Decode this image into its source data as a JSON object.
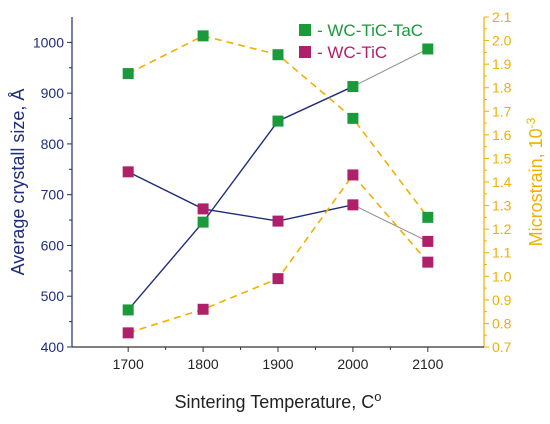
{
  "chart_data": {
    "type": "line",
    "x": [
      1700,
      1800,
      1900,
      2000,
      2100
    ],
    "xlabel": "Sintering Temperature, C",
    "xlabel_degree": "o",
    "xlim": [
      1625,
      2175
    ],
    "x_ticks": [
      1700,
      1800,
      1900,
      2000,
      2100
    ],
    "ylabel_left": "Average crystall size, Å",
    "ylim_left": [
      400,
      1050
    ],
    "y_ticks_left": [
      400,
      500,
      600,
      700,
      800,
      900,
      1000
    ],
    "ylabel_right": "Microstrain, 10",
    "ylabel_right_exponent": "-3",
    "ylim_right": [
      0.7,
      2.1
    ],
    "y_ticks_right": [
      "0.7",
      "0.8",
      "0.9",
      "1.0",
      "1.1",
      "1.2",
      "1.3",
      "1.4",
      "1.5",
      "1.6",
      "1.7",
      "1.8",
      "1.9",
      "2.0",
      "2.1"
    ],
    "legend_position": "top-right",
    "colors": {
      "left_axis": "#1f2d7a",
      "right_axis": "#f0b000",
      "wc_tic_tac": "#1a9a3a",
      "wc_tic": "#b0206a",
      "grey_segment": "#8c8c8c"
    },
    "series": [
      {
        "name": "- WC-TiC-TaC",
        "marker_color": "#1a9a3a",
        "crystal_size": [
          473,
          646,
          845,
          913,
          987
        ],
        "microstrain": [
          1.86,
          2.02,
          1.94,
          1.67,
          1.25
        ]
      },
      {
        "name": "- WC-TiC",
        "marker_color": "#b0206a",
        "crystal_size": [
          745,
          672,
          648,
          680,
          608
        ],
        "microstrain": [
          0.76,
          0.86,
          0.99,
          1.43,
          1.06
        ]
      }
    ]
  }
}
